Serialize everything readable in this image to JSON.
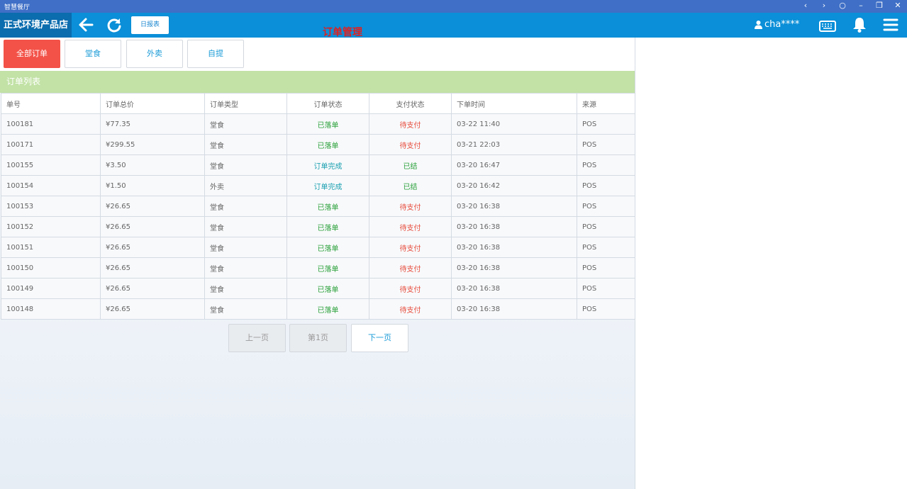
{
  "window": {
    "title": "智慧餐厅",
    "controls": [
      "‹",
      "›",
      "○",
      "–",
      "❐",
      "✕"
    ]
  },
  "header": {
    "store_name": "正式环境产品店",
    "report_label": "日报表",
    "page_title": "订单管理",
    "user": "cha****"
  },
  "filters": [
    {
      "label": "全部订单",
      "active": true
    },
    {
      "label": "堂食",
      "active": false
    },
    {
      "label": "外卖",
      "active": false
    },
    {
      "label": "自提",
      "active": false
    }
  ],
  "list_title": "订单列表",
  "table": {
    "columns": [
      "单号",
      "订单总价",
      "订单类型",
      "订单状态",
      "支付状态",
      "下单时间",
      "来源"
    ],
    "rows": [
      [
        "100181",
        "¥77.35",
        "堂食",
        "已落单",
        "待支付",
        "03-22 11:40",
        "POS"
      ],
      [
        "100171",
        "¥299.55",
        "堂食",
        "已落单",
        "待支付",
        "03-21 22:03",
        "POS"
      ],
      [
        "100155",
        "¥3.50",
        "堂食",
        "订单完成",
        "已结",
        "03-20 16:47",
        "POS"
      ],
      [
        "100154",
        "¥1.50",
        "外卖",
        "订单完成",
        "已结",
        "03-20 16:42",
        "POS"
      ],
      [
        "100153",
        "¥26.65",
        "堂食",
        "已落单",
        "待支付",
        "03-20 16:38",
        "POS"
      ],
      [
        "100152",
        "¥26.65",
        "堂食",
        "已落单",
        "待支付",
        "03-20 16:38",
        "POS"
      ],
      [
        "100151",
        "¥26.65",
        "堂食",
        "已落单",
        "待支付",
        "03-20 16:38",
        "POS"
      ],
      [
        "100150",
        "¥26.65",
        "堂食",
        "已落单",
        "待支付",
        "03-20 16:38",
        "POS"
      ],
      [
        "100149",
        "¥26.65",
        "堂食",
        "已落单",
        "待支付",
        "03-20 16:38",
        "POS"
      ],
      [
        "100148",
        "¥26.65",
        "堂食",
        "已落单",
        "待支付",
        "03-20 16:38",
        "POS"
      ]
    ]
  },
  "pagination": {
    "prev_label": "上一页",
    "current_label": "第1页",
    "next_label": "下一页"
  },
  "colors": {
    "header": "#0a8fd8",
    "active_filter": "#f35248",
    "list_header": "#c2e2a6",
    "pending": "#e74c3c",
    "placed": "#2aa13a",
    "done": "#1aa0b0"
  },
  "icons": {
    "back": "arrow-left-icon",
    "refresh": "refresh-icon",
    "user": "user-icon",
    "keyboard": "keyboard-icon",
    "bell": "bell-icon",
    "menu": "menu-icon"
  }
}
